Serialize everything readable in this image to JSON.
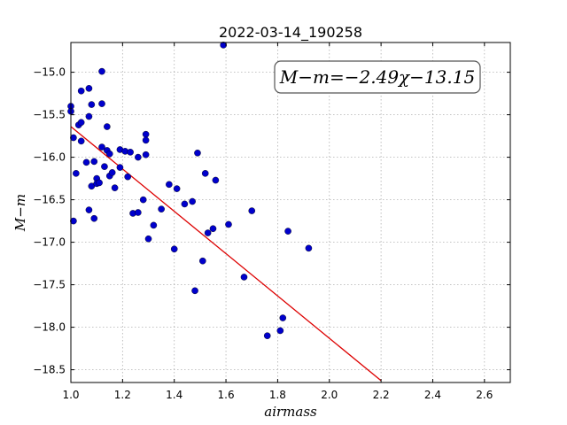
{
  "chart_data": {
    "type": "scatter",
    "title": "2022-03-14_190258",
    "xlabel": "airmass",
    "ylabel": "M−m",
    "annotation": "M−m=−2.49χ−13.15",
    "xlim": [
      1.0,
      2.7
    ],
    "ylim": [
      -18.65,
      -14.65
    ],
    "y_inverted": true,
    "grid": true,
    "xticks": [
      "1.0",
      "1.2",
      "1.4",
      "1.6",
      "1.8",
      "2.0",
      "2.2",
      "2.4",
      "2.6"
    ],
    "yticks": [
      "−15.0",
      "−15.5",
      "−16.0",
      "−16.5",
      "−17.0",
      "−17.5",
      "−18.0",
      "−18.5"
    ],
    "colors": {
      "points": "#0000cc",
      "fit_line": "#dd0000",
      "grid": "#b0b0b0"
    },
    "fit": {
      "slope": -2.49,
      "intercept": -13.15,
      "x_range": [
        1.0,
        2.2
      ]
    },
    "points": [
      [
        1.0,
        -15.4
      ],
      [
        1.0,
        -15.46
      ],
      [
        1.01,
        -15.77
      ],
      [
        1.01,
        -16.75
      ],
      [
        1.02,
        -16.19
      ],
      [
        1.03,
        -15.62
      ],
      [
        1.04,
        -15.22
      ],
      [
        1.04,
        -15.59
      ],
      [
        1.04,
        -15.81
      ],
      [
        1.06,
        -16.06
      ],
      [
        1.07,
        -15.19
      ],
      [
        1.07,
        -15.52
      ],
      [
        1.08,
        -15.38
      ],
      [
        1.07,
        -16.62
      ],
      [
        1.08,
        -16.34
      ],
      [
        1.09,
        -16.72
      ],
      [
        1.09,
        -16.05
      ],
      [
        1.1,
        -16.25
      ],
      [
        1.1,
        -16.31
      ],
      [
        1.11,
        -16.3
      ],
      [
        1.12,
        -14.99
      ],
      [
        1.12,
        -15.37
      ],
      [
        1.12,
        -15.88
      ],
      [
        1.13,
        -16.11
      ],
      [
        1.14,
        -15.64
      ],
      [
        1.14,
        -15.92
      ],
      [
        1.15,
        -15.96
      ],
      [
        1.15,
        -16.22
      ],
      [
        1.16,
        -16.18
      ],
      [
        1.17,
        -16.36
      ],
      [
        1.19,
        -15.91
      ],
      [
        1.19,
        -16.12
      ],
      [
        1.21,
        -15.93
      ],
      [
        1.22,
        -16.23
      ],
      [
        1.23,
        -15.94
      ],
      [
        1.24,
        -16.66
      ],
      [
        1.26,
        -16.0
      ],
      [
        1.26,
        -16.65
      ],
      [
        1.28,
        -16.5
      ],
      [
        1.29,
        -15.73
      ],
      [
        1.29,
        -15.8
      ],
      [
        1.29,
        -15.97
      ],
      [
        1.3,
        -16.96
      ],
      [
        1.32,
        -16.8
      ],
      [
        1.35,
        -16.61
      ],
      [
        1.38,
        -16.32
      ],
      [
        1.4,
        -17.08
      ],
      [
        1.41,
        -16.37
      ],
      [
        1.44,
        -16.55
      ],
      [
        1.47,
        -16.52
      ],
      [
        1.48,
        -17.57
      ],
      [
        1.49,
        -15.95
      ],
      [
        1.51,
        -17.22
      ],
      [
        1.52,
        -16.19
      ],
      [
        1.53,
        -16.89
      ],
      [
        1.55,
        -16.84
      ],
      [
        1.56,
        -16.27
      ],
      [
        1.59,
        -14.68
      ],
      [
        1.61,
        -16.79
      ],
      [
        1.67,
        -17.41
      ],
      [
        1.7,
        -16.63
      ],
      [
        1.76,
        -18.1
      ],
      [
        1.81,
        -18.04
      ],
      [
        1.82,
        -17.89
      ],
      [
        1.84,
        -16.87
      ],
      [
        1.92,
        -17.07
      ]
    ]
  }
}
